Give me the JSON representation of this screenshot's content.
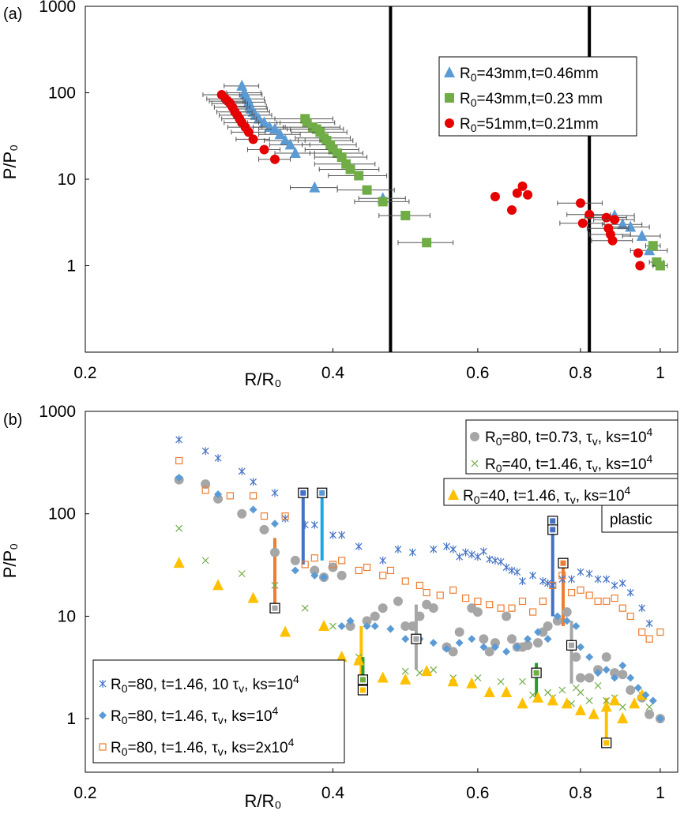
{
  "chart_data": [
    {
      "panel_label": "(a)",
      "type": "scatter",
      "xscale": "log",
      "yscale": "log",
      "xlim": [
        0.2,
        1.05
      ],
      "ylim": [
        0.1,
        1000
      ],
      "xlabel": "R/R₀",
      "ylabel": "P/P₀",
      "xticks": [
        0.2,
        0.4,
        0.6,
        0.8,
        1
      ],
      "xtick_labels": [
        "0.2",
        "0.4",
        "0.6",
        "0.8",
        "1"
      ],
      "yticks": [
        1,
        10,
        100,
        1000
      ],
      "ytick_labels": [
        "1",
        "10",
        "100",
        "1000"
      ],
      "vlines": [
        0.47,
        0.82
      ],
      "legend_position": "top-right",
      "series": [
        {
          "name": "R0=43mm,t=0.46mm",
          "legend": [
            "R",
            "0",
            "=43mm,t=0.46mm"
          ],
          "color": "#5b9bd5",
          "marker": "triangle",
          "x": [
            0.31,
            0.312,
            0.313,
            0.315,
            0.316,
            0.317,
            0.318,
            0.32,
            0.322,
            0.325,
            0.33,
            0.335,
            0.34,
            0.345,
            0.35,
            0.355,
            0.36,
            0.38,
            0.46,
            0.88,
            0.9,
            0.92,
            0.95,
            0.97
          ],
          "y": [
            120,
            100,
            95,
            85,
            78,
            70,
            65,
            60,
            55,
            50,
            45,
            40,
            38,
            33,
            28,
            25,
            20,
            8,
            6,
            3.8,
            3,
            2.8,
            2.2,
            1.5
          ],
          "xerr": [
            0.015,
            0.015,
            0.015,
            0.015,
            0.015,
            0.015,
            0.015,
            0.015,
            0.015,
            0.015,
            0.015,
            0.015,
            0.015,
            0.02,
            0.02,
            0.02,
            0.02,
            0.025,
            0.03,
            0.05,
            0.05,
            0.05,
            0.05,
            0.05
          ]
        },
        {
          "name": "R0=43mm,t=0.23 mm",
          "legend": [
            "R",
            "0",
            "=43mm,t=0.23 mm"
          ],
          "color": "#70ad47",
          "marker": "square",
          "x": [
            0.37,
            0.372,
            0.378,
            0.382,
            0.386,
            0.39,
            0.393,
            0.397,
            0.4,
            0.405,
            0.41,
            0.415,
            0.42,
            0.43,
            0.44,
            0.46,
            0.49,
            0.52,
            0.98,
            0.99,
            1.0
          ],
          "y": [
            50,
            45,
            40,
            38,
            35,
            30,
            28,
            25,
            22,
            20,
            18,
            15,
            13,
            11,
            7.5,
            5.5,
            3.8,
            1.85,
            1.7,
            1.1,
            1.0
          ],
          "xerr": [
            0.03,
            0.03,
            0.03,
            0.03,
            0.03,
            0.03,
            0.03,
            0.03,
            0.03,
            0.03,
            0.03,
            0.035,
            0.035,
            0.035,
            0.035,
            0.035,
            0.035,
            0.04,
            0.02,
            0.02,
            0.02
          ]
        },
        {
          "name": "R0=51mm,t=0.21mm",
          "legend": [
            "R",
            "0",
            "=51mm,t=0.21mm"
          ],
          "color": "#e60000",
          "marker": "circle",
          "x": [
            0.293,
            0.296,
            0.298,
            0.3,
            0.302,
            0.304,
            0.306,
            0.308,
            0.31,
            0.313,
            0.316,
            0.32,
            0.33,
            0.34,
            0.63,
            0.66,
            0.67,
            0.68,
            0.69,
            0.8,
            0.805,
            0.82,
            0.86,
            0.865,
            0.87,
            0.875,
            0.88,
            0.94,
            0.945
          ],
          "y": [
            95,
            85,
            80,
            75,
            68,
            60,
            55,
            50,
            45,
            40,
            35,
            29,
            22,
            17,
            6.3,
            4.4,
            6.9,
            8.3,
            6.6,
            5.3,
            3.1,
            3.9,
            3.6,
            2.7,
            2.3,
            1.95,
            3.4,
            1.4,
            1.0
          ],
          "xerr": [
            0.015,
            0.015,
            0.015,
            0.015,
            0.015,
            0.015,
            0.015,
            0.015,
            0.015,
            0.015,
            0.015,
            0.015,
            0.015,
            0.015,
            0,
            0,
            0,
            0,
            0,
            0.05,
            0.05,
            0.05,
            0.05,
            0.05,
            0.05,
            0.05,
            0.05,
            0,
            0
          ]
        }
      ]
    },
    {
      "panel_label": "(b)",
      "type": "scatter",
      "xscale": "log",
      "yscale": "log",
      "xlim": [
        0.2,
        1.05
      ],
      "ylim": [
        0.3,
        1000
      ],
      "xlabel": "R/R₀",
      "ylabel": "P/P₀",
      "xticks": [
        0.2,
        0.4,
        0.6,
        0.8,
        1
      ],
      "xtick_labels": [
        "0.2",
        "0.4",
        "0.6",
        "0.8",
        "1"
      ],
      "yticks": [
        1,
        10,
        100,
        1000
      ],
      "ytick_labels": [
        "1",
        "10",
        "100",
        "1000"
      ],
      "legend_position_1": "top-right",
      "legend_position_2": "bottom-left",
      "series": [
        {
          "name": "R0=80, t=0.73, τv, ks=10^4",
          "legend": [
            "R",
            "0",
            "=80, t=0.73,",
            "τ",
            "v",
            ", ks=10",
            "4"
          ],
          "color": "#a6a6a6",
          "marker": "circle",
          "x": [
            0.26,
            0.28,
            0.29,
            0.31,
            0.33,
            0.34,
            0.36,
            0.38,
            0.39,
            0.4,
            0.41,
            0.42,
            0.44,
            0.45,
            0.46,
            0.48,
            0.49,
            0.5,
            0.51,
            0.52,
            0.53,
            0.55,
            0.56,
            0.57,
            0.59,
            0.6,
            0.61,
            0.62,
            0.63,
            0.65,
            0.66,
            0.67,
            0.68,
            0.69,
            0.71,
            0.72,
            0.73,
            0.75,
            0.77,
            0.79,
            0.8,
            0.82,
            0.84,
            0.86,
            0.88,
            0.9,
            0.92,
            0.95,
            0.97,
            1.0
          ],
          "y": [
            215,
            195,
            140,
            100,
            70,
            42,
            35,
            28,
            24,
            30,
            25,
            8,
            9,
            10,
            12,
            14,
            8,
            8,
            10,
            13,
            12,
            5,
            4.5,
            7,
            12,
            11,
            6,
            4.5,
            5.5,
            10,
            6,
            5,
            5,
            5.2,
            5.5,
            7,
            8,
            9,
            11,
            4,
            2.5,
            2.5,
            3,
            4,
            2.8,
            2.7,
            1.9,
            1.6,
            1.1,
            1.0
          ]
        },
        {
          "name": "R0=40, t=1.46, τv, ks=10^4",
          "legend": [
            "R",
            "0",
            "=40, t=1.46,",
            "τ",
            "v",
            ", ks=10",
            "4"
          ],
          "color": "#70ad47",
          "marker": "x",
          "x": [
            0.26,
            0.28,
            0.31,
            0.34,
            0.37,
            0.4,
            0.43,
            0.49,
            0.51,
            0.53,
            0.56,
            0.6,
            0.64,
            0.68,
            0.7,
            0.73,
            0.74,
            0.76,
            0.78,
            0.79,
            0.8,
            0.82,
            0.84,
            0.86,
            0.88,
            0.9,
            0.95,
            0.97
          ],
          "y": [
            72,
            35,
            26,
            20,
            12,
            8,
            4,
            2.9,
            2.8,
            3,
            2.5,
            2.5,
            2.3,
            2.3,
            1.7,
            1.8,
            1.6,
            1.9,
            1.4,
            2,
            1.8,
            1.5,
            2.1,
            1.5,
            1.6,
            1.3,
            1.7,
            1.3
          ]
        },
        {
          "name": "R0=40, t=1.46, τv, ks=10^4 plastic",
          "legend": [
            "R",
            "0",
            "=40, t=1.46,",
            "τ",
            "v",
            ", ks=10",
            "4"
          ],
          "legend_extra": "plastic",
          "color": "#ffc000",
          "marker": "triangle",
          "x": [
            0.26,
            0.29,
            0.32,
            0.35,
            0.39,
            0.41,
            0.43,
            0.46,
            0.49,
            0.52,
            0.56,
            0.59,
            0.62,
            0.65,
            0.68,
            0.71,
            0.74,
            0.77,
            0.8,
            0.83,
            0.86,
            0.88,
            0.9,
            0.93,
            0.95
          ],
          "y": [
            33,
            20,
            15,
            7,
            8,
            4,
            3.7,
            2.5,
            2.4,
            2.9,
            2.3,
            2.2,
            1.8,
            1.8,
            1.4,
            1.6,
            1.5,
            1.4,
            1.2,
            1.1,
            1.3,
            1.5,
            1.0,
            1.4,
            1.7
          ]
        },
        {
          "name": "R0=80, t=1.46, 10 τv, ks=10^4",
          "legend": [
            "R",
            "0",
            "=80, t=1.46, 10",
            "τ",
            "v",
            ", ks=10",
            "4"
          ],
          "color": "#4472c4",
          "marker": "asterisk",
          "x": [
            0.26,
            0.28,
            0.29,
            0.31,
            0.32,
            0.34,
            0.35,
            0.37,
            0.38,
            0.4,
            0.41,
            0.43,
            0.46,
            0.48,
            0.5,
            0.53,
            0.55,
            0.56,
            0.57,
            0.58,
            0.59,
            0.6,
            0.61,
            0.62,
            0.63,
            0.64,
            0.65,
            0.66,
            0.67,
            0.68,
            0.7,
            0.72,
            0.73,
            0.74,
            0.76,
            0.78,
            0.8,
            0.82,
            0.84,
            0.86,
            0.88,
            0.9,
            0.92,
            0.95,
            0.97
          ],
          "y": [
            530,
            410,
            350,
            260,
            205,
            160,
            90,
            78,
            78,
            62,
            62,
            48,
            35,
            45,
            42,
            45,
            48,
            45,
            38,
            42,
            40,
            38,
            43,
            36,
            35,
            34,
            30,
            28,
            27,
            22,
            25,
            22,
            21,
            20,
            23,
            23,
            27,
            26,
            23,
            23,
            20,
            21,
            17,
            12,
            8.5
          ]
        },
        {
          "name": "R0=80, t=1.46, τv, ks=10^4",
          "legend": [
            "R",
            "0",
            "=80, t=1.46,",
            "τ",
            "v",
            ", ks=10",
            "4"
          ],
          "color": "#5b9bd5",
          "marker": "diamond",
          "x": [
            0.26,
            0.29,
            0.32,
            0.34,
            0.36,
            0.38,
            0.39,
            0.41,
            0.42,
            0.44,
            0.45,
            0.47,
            0.49,
            0.51,
            0.53,
            0.55,
            0.57,
            0.59,
            0.61,
            0.63,
            0.65,
            0.67,
            0.69,
            0.71,
            0.73,
            0.75,
            0.77,
            0.79,
            0.8,
            0.82,
            0.84,
            0.86,
            0.88,
            0.9,
            0.92,
            0.94,
            0.96,
            0.98,
            1.0
          ],
          "y": [
            225,
            155,
            110,
            80,
            28,
            25,
            24,
            8,
            9,
            8,
            8,
            7.5,
            6,
            6,
            5.5,
            4.8,
            5.5,
            6,
            5,
            5,
            4.5,
            5,
            6,
            7,
            6,
            10,
            9,
            8,
            5,
            4,
            2.8,
            3,
            2.5,
            3.3,
            2.5,
            2,
            1.7,
            1.5,
            1.0
          ]
        },
        {
          "name": "R0=80, t=1.46, τv, ks=2x10^4",
          "legend": [
            "R",
            "0",
            "=80, t=1.46,",
            "τ",
            "v",
            ", ks=2x10",
            "4"
          ],
          "color": "#ed7d31",
          "marker": "open-square",
          "x": [
            0.26,
            0.28,
            0.3,
            0.32,
            0.33,
            0.35,
            0.37,
            0.38,
            0.4,
            0.41,
            0.43,
            0.44,
            0.46,
            0.47,
            0.49,
            0.51,
            0.52,
            0.54,
            0.56,
            0.58,
            0.6,
            0.62,
            0.64,
            0.66,
            0.68,
            0.7,
            0.72,
            0.74,
            0.76,
            0.78,
            0.8,
            0.82,
            0.84,
            0.86,
            0.88,
            0.9,
            0.92,
            0.95,
            0.97,
            1.0
          ],
          "y": [
            330,
            170,
            150,
            150,
            95,
            95,
            32,
            37,
            32,
            35,
            28,
            30,
            25,
            28,
            22,
            20,
            17,
            16,
            18,
            15,
            14,
            13,
            12,
            12,
            14,
            11,
            14,
            20,
            25,
            17,
            18,
            16,
            14,
            14,
            15,
            12,
            10,
            7,
            6,
            7
          ]
        }
      ],
      "bars": [
        {
          "x": 0.34,
          "y0": 12,
          "y1": 58,
          "color": "#ed7d31"
        },
        {
          "x": 0.368,
          "y0": 32,
          "y1": 160,
          "color": "#4472c4"
        },
        {
          "x": 0.388,
          "y0": 35,
          "y1": 160,
          "color": "#1fa8e0"
        },
        {
          "x": 0.433,
          "y0": 1.8,
          "y1": 8,
          "color": "#ffc000"
        },
        {
          "x": 0.435,
          "y0": 1.8,
          "y1": 4,
          "color": "#2a9d2a"
        },
        {
          "x": 0.505,
          "y0": 3,
          "y1": 13,
          "color": "#a6a6a6"
        },
        {
          "x": 0.707,
          "y0": 1.6,
          "y1": 3.5,
          "color": "#2a9d2a"
        },
        {
          "x": 0.74,
          "y0": 10,
          "y1": 90,
          "color": "#4472c4"
        },
        {
          "x": 0.762,
          "y0": 8,
          "y1": 33,
          "color": "#ed7d31"
        },
        {
          "x": 0.78,
          "y0": 2.2,
          "y1": 9,
          "color": "#a6a6a6"
        },
        {
          "x": 0.86,
          "y0": 0.58,
          "y1": 1.6,
          "color": "#ffc000"
        }
      ],
      "markers_boxed": [
        {
          "x": 0.34,
          "y": 12,
          "fill": "#a6a6a6"
        },
        {
          "x": 0.368,
          "y": 160,
          "fill": "#4472c4"
        },
        {
          "x": 0.388,
          "y": 160,
          "fill": "#5b9bd5"
        },
        {
          "x": 0.435,
          "y": 2.4,
          "fill": "#70ad47"
        },
        {
          "x": 0.435,
          "y": 1.9,
          "fill": "#ffc000"
        },
        {
          "x": 0.505,
          "y": 6,
          "fill": "#a6a6a6"
        },
        {
          "x": 0.707,
          "y": 2.8,
          "fill": "#70ad47"
        },
        {
          "x": 0.74,
          "y": 85,
          "fill": "#4472c4"
        },
        {
          "x": 0.74,
          "y": 70,
          "fill": "#4472c4"
        },
        {
          "x": 0.762,
          "y": 33,
          "fill": "#ed7d31"
        },
        {
          "x": 0.78,
          "y": 5.2,
          "fill": "#a6a6a6"
        },
        {
          "x": 0.86,
          "y": 0.58,
          "fill": "#ffc000"
        }
      ]
    }
  ]
}
